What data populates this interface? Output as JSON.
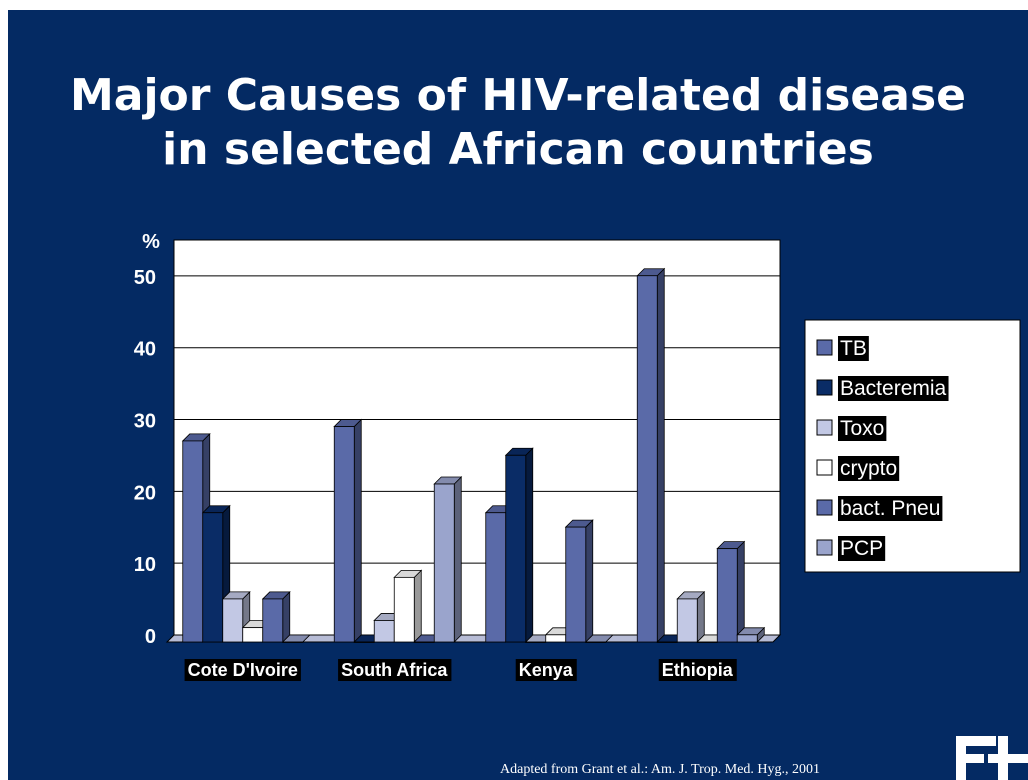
{
  "slide": {
    "title_line1": "Major Causes of HIV-related disease",
    "title_line2": "in selected African countries",
    "source": "Adapted from Grant et al.: Am. J. Trop. Med. Hyg., 2001"
  },
  "chart_data": {
    "type": "bar",
    "title": "",
    "ylabel": "%",
    "xlabel": "",
    "ylim": [
      0,
      55
    ],
    "yticks": [
      0,
      10,
      20,
      30,
      40,
      50
    ],
    "grid": true,
    "legend_position": "right",
    "categories": [
      "Cote D'Ivoire",
      "South Africa",
      "Kenya",
      "Ethiopia"
    ],
    "series": [
      {
        "name": "TB",
        "color": "#5a6aa8",
        "values": [
          28,
          30,
          18,
          51
        ]
      },
      {
        "name": "Bacteremia",
        "color": "#0a2c66",
        "values": [
          18,
          0,
          26,
          0
        ]
      },
      {
        "name": "Toxo",
        "color": "#c2c8e4",
        "values": [
          6,
          3,
          0,
          6
        ]
      },
      {
        "name": "crypto",
        "color": "#ffffff",
        "values": [
          2,
          9,
          1,
          0
        ]
      },
      {
        "name": "bact. Pneu",
        "color": "#5a6aa8",
        "values": [
          6,
          0,
          16,
          13
        ]
      },
      {
        "name": "PCP",
        "color": "#9aa4cc",
        "values": [
          0,
          22,
          0,
          1
        ]
      }
    ]
  }
}
